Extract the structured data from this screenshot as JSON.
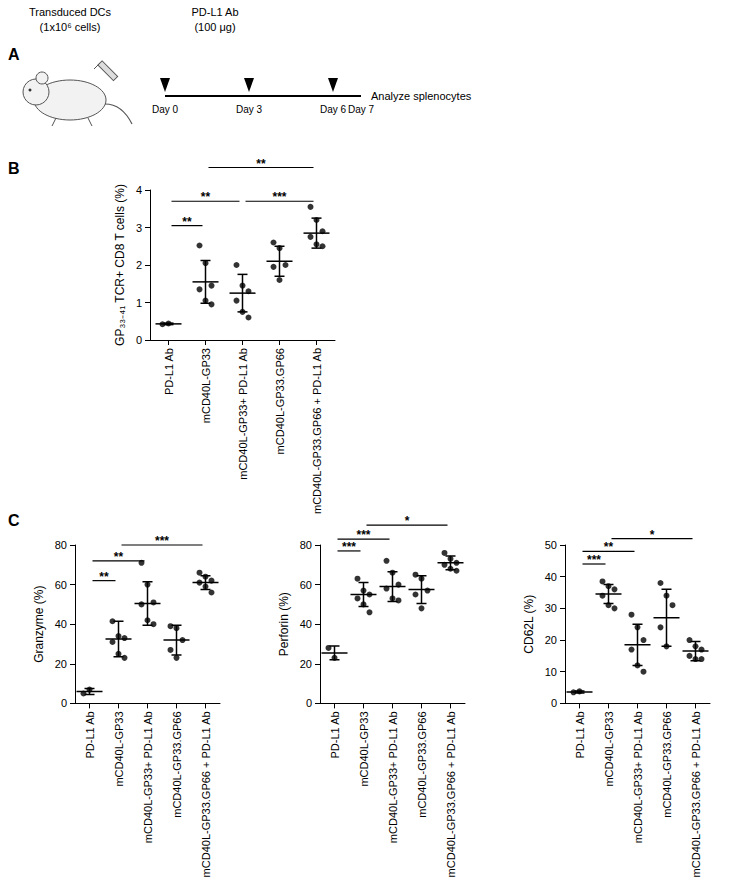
{
  "diagram": {
    "panel": "A",
    "injection_label": [
      "Transduced DCs",
      "(1x10⁶ cells)"
    ],
    "treatment_label": [
      "PD-L1 Ab",
      "(100 μg)"
    ],
    "timeline": [
      {
        "label": "Day 0",
        "day": 0,
        "dose": true
      },
      {
        "label": "Day 3",
        "day": 3,
        "dose": true
      },
      {
        "label": "Day 6",
        "day": 6,
        "dose": true
      },
      {
        "label": "Day 7",
        "day": 7,
        "dose": false
      }
    ],
    "readout": "Analyze splenocytes"
  },
  "chart_data": [
    {
      "type": "scatter",
      "panel": "B",
      "ylabel": "GP₃₃₋₄₁ TCR+ CD8 T cells (%)",
      "categories": [
        "PD-L1 Ab",
        "mCD40L-GP33",
        "mCD40L-GP33+ PD-L1 Ab",
        "mCD40L-GP33.GP66",
        "mCD40L-GP33.GP66 + PD-L1 Ab"
      ],
      "values": [
        [
          0.42,
          0.44
        ],
        [
          2.52,
          2.05,
          1.45,
          1.35,
          1.05,
          0.95
        ],
        [
          2.0,
          1.45,
          1.3,
          1.05,
          0.75,
          0.6
        ],
        [
          2.6,
          2.45,
          2.0,
          1.95,
          1.6
        ],
        [
          3.55,
          3.2,
          2.9,
          2.75,
          2.55,
          2.5
        ]
      ],
      "mean": [
        0.43,
        1.55,
        1.25,
        2.1,
        2.85
      ],
      "sd": [
        0.02,
        0.57,
        0.5,
        0.4,
        0.4
      ],
      "ylim": [
        0,
        4
      ],
      "yticks": [
        0,
        1,
        2,
        3,
        4
      ],
      "grid": false,
      "color": "#000000",
      "marker": "circle",
      "significance": [
        {
          "from": 1,
          "to": 4,
          "y": 4.6,
          "label": "**"
        },
        {
          "from": 0,
          "to": 2,
          "y": 3.7,
          "label": "**"
        },
        {
          "from": 2,
          "to": 4,
          "y": 3.7,
          "label": "***"
        },
        {
          "from": 0,
          "to": 1,
          "y": 3.05,
          "label": "**"
        }
      ]
    },
    {
      "type": "scatter",
      "panel": "C",
      "ylabel": "Granzyme (%)",
      "categories": [
        "PD-L1 Ab",
        "mCD40L-GP33",
        "mCD40L-GP33+ PD-L1 Ab",
        "mCD40L-GP33.GP66",
        "mCD40L-GP33.GP66 + PD-L1 Ab"
      ],
      "values": [
        [
          5,
          7
        ],
        [
          41.5,
          34,
          33,
          31,
          25,
          23
        ],
        [
          71,
          60,
          51,
          50,
          42,
          40
        ],
        [
          39,
          38,
          32,
          27,
          23
        ],
        [
          66,
          64,
          62,
          61,
          59,
          56
        ]
      ],
      "mean": [
        6,
        32.5,
        50.5,
        32,
        61
      ],
      "sd": [
        1.5,
        9,
        11,
        7.5,
        3.5
      ],
      "ylim": [
        0,
        80
      ],
      "yticks": [
        0,
        20,
        40,
        60,
        80
      ],
      "grid": false,
      "color": "#000000",
      "marker": "circle",
      "significance": [
        {
          "from": 1,
          "to": 4,
          "y": 80,
          "label": "***"
        },
        {
          "from": 0,
          "to": 2,
          "y": 72,
          "label": "**"
        },
        {
          "from": 0,
          "to": 1,
          "y": 62,
          "label": "**"
        }
      ]
    },
    {
      "type": "scatter",
      "ylabel": "Perforin (%)",
      "categories": [
        "PD-L1 Ab",
        "mCD40L-GP33",
        "mCD40L-GP33+ PD-L1 Ab",
        "mCD40L-GP33.GP66",
        "mCD40L-GP33.GP66 + PD-L1 Ab"
      ],
      "values": [
        [
          28,
          23
        ],
        [
          63,
          57,
          55,
          53,
          50,
          46
        ],
        [
          72,
          66,
          60,
          58,
          53,
          52
        ],
        [
          65,
          63,
          57,
          55,
          48
        ],
        [
          76,
          73,
          71,
          70,
          68,
          67
        ]
      ],
      "mean": [
        25.5,
        55,
        59,
        57.5,
        71
      ],
      "sd": [
        3.5,
        6,
        7.5,
        7,
        3.5
      ],
      "ylim": [
        0,
        80
      ],
      "yticks": [
        0,
        20,
        40,
        60,
        80
      ],
      "grid": false,
      "color": "#000000",
      "marker": "circle",
      "significance": [
        {
          "from": 1,
          "to": 4,
          "y": 90,
          "label": "*"
        },
        {
          "from": 0,
          "to": 2,
          "y": 83,
          "label": "***"
        },
        {
          "from": 0,
          "to": 1,
          "y": 77,
          "label": "***"
        }
      ]
    },
    {
      "type": "scatter",
      "ylabel": "CD62L (%)",
      "categories": [
        "PD-L1 Ab",
        "mCD40L-GP33",
        "mCD40L-GP33+ PD-L1 Ab",
        "mCD40L-GP33.GP66",
        "mCD40L-GP33.GP66 + PD-L1 Ab"
      ],
      "values": [
        [
          3.5,
          3.8
        ],
        [
          38.5,
          37,
          36,
          34,
          31,
          30
        ],
        [
          28,
          24,
          20,
          17,
          12,
          10
        ],
        [
          38,
          34,
          31,
          24,
          18
        ],
        [
          20,
          18,
          17,
          15,
          14,
          14
        ]
      ],
      "mean": [
        3.6,
        34.5,
        18.5,
        27,
        16.5
      ],
      "sd": [
        0.3,
        3,
        6.5,
        9,
        3
      ],
      "ylim": [
        0,
        50
      ],
      "yticks": [
        0,
        10,
        20,
        30,
        40,
        50
      ],
      "grid": false,
      "color": "#000000",
      "marker": "circle",
      "significance": [
        {
          "from": 1,
          "to": 4,
          "y": 52,
          "label": "*"
        },
        {
          "from": 0,
          "to": 2,
          "y": 48,
          "label": "**"
        },
        {
          "from": 0,
          "to": 1,
          "y": 44,
          "label": "***"
        }
      ]
    }
  ]
}
